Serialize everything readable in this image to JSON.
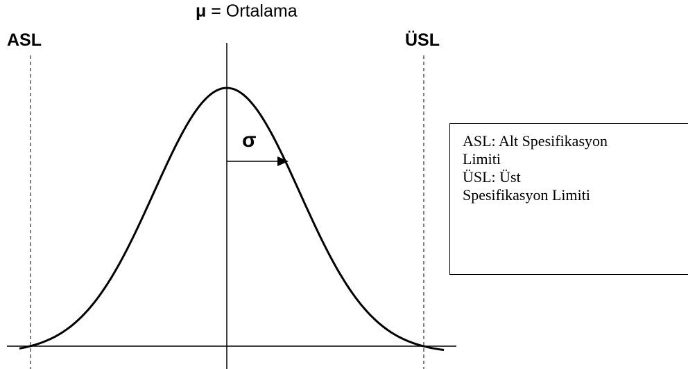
{
  "mean": {
    "symbol": "μ",
    "label": "= Ortalama"
  },
  "lower_limit": "ASL",
  "upper_limit": "ÜSL",
  "sigma": "σ",
  "legend": {
    "lines": [
      "ASL: Alt Spesifikasyon",
      "Limiti",
      "ÜSL: Üst",
      "Spesifikasyon Limiti"
    ]
  }
}
